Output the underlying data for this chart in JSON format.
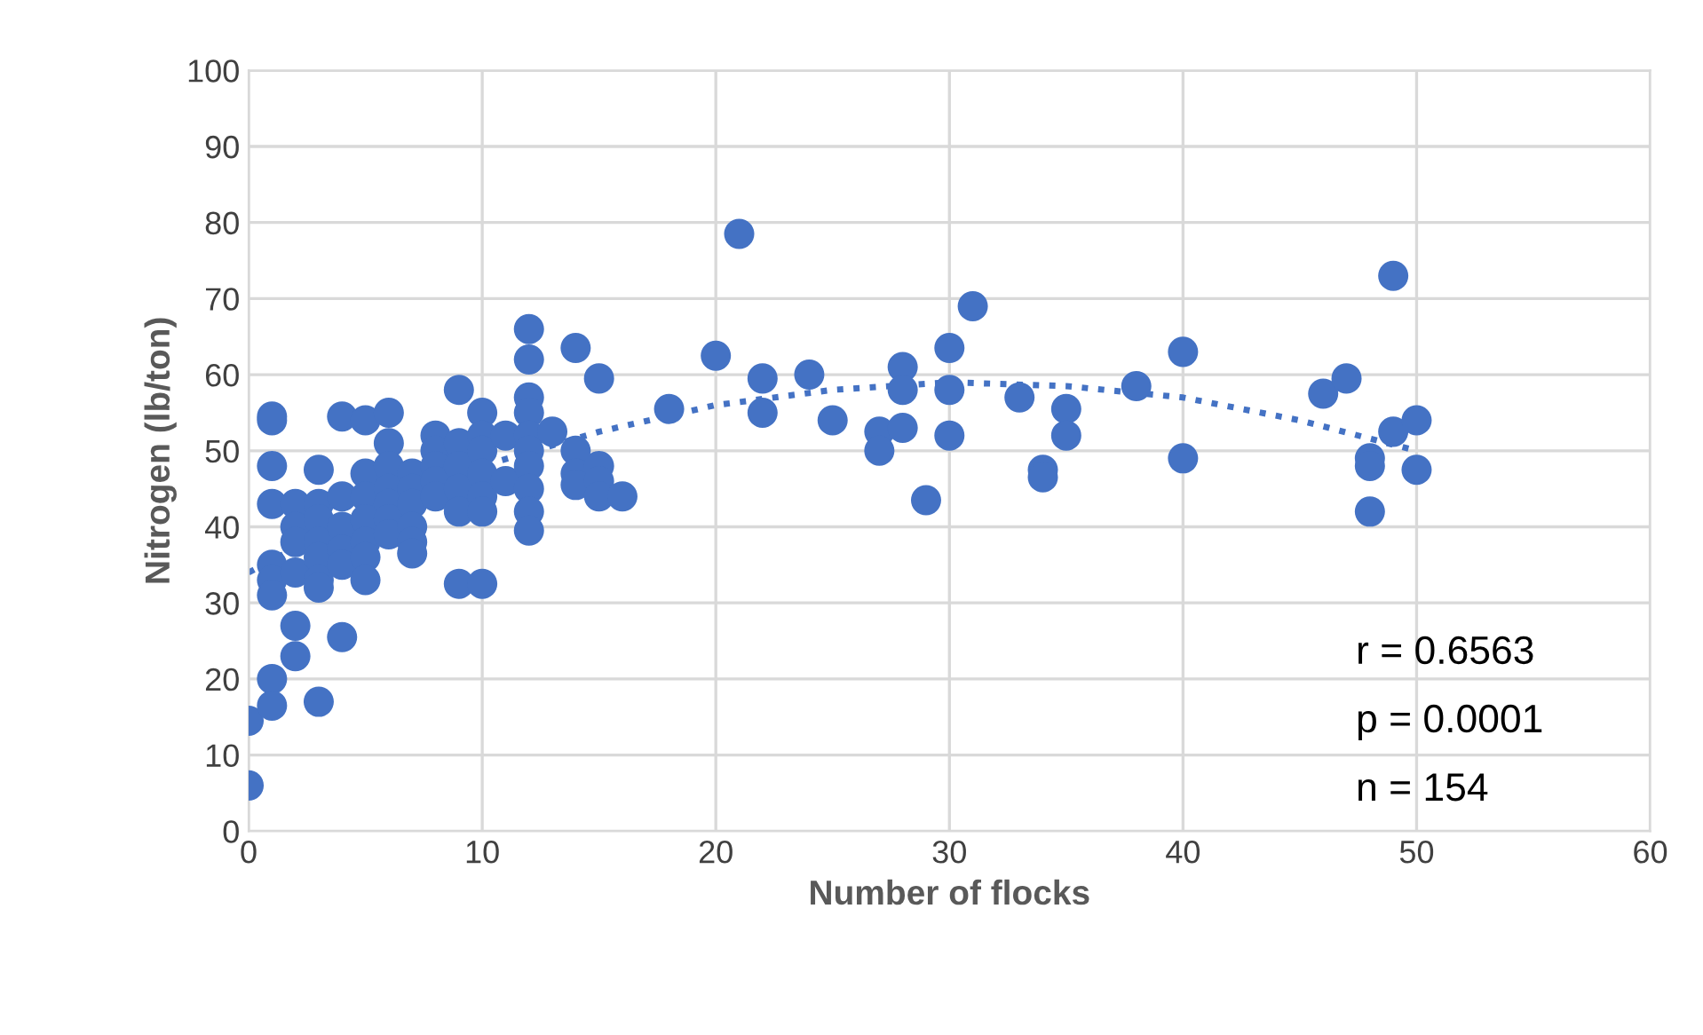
{
  "chart_data": {
    "type": "scatter",
    "xlabel": "Number of flocks",
    "ylabel": "Nitrogen (lb/ton)",
    "xlim": [
      0,
      60
    ],
    "ylim": [
      0,
      100
    ],
    "xticks": [
      0,
      10,
      20,
      30,
      40,
      50,
      60
    ],
    "yticks": [
      0,
      10,
      20,
      30,
      40,
      50,
      60,
      70,
      80,
      90,
      100
    ],
    "grid": true,
    "legend": false,
    "annotations": [
      "r = 0.6563",
      "p = 0.0001",
      "n = 154"
    ],
    "series": [
      {
        "color": "#4472c4",
        "marker": "circle",
        "x": [
          0,
          0,
          1,
          1,
          1,
          1,
          1,
          1,
          1,
          1,
          1,
          2,
          2,
          2,
          2,
          2,
          2,
          3,
          3,
          3,
          3,
          3,
          3,
          3,
          3,
          4,
          4,
          4,
          4,
          4,
          4,
          5,
          5,
          5,
          5,
          5,
          5,
          5,
          6,
          6,
          6,
          6,
          6,
          6,
          6,
          7,
          7,
          7,
          7,
          7,
          7,
          8,
          8,
          8,
          8,
          8,
          9,
          9,
          9,
          9,
          9,
          9,
          10,
          10,
          10,
          10,
          10,
          10,
          10,
          11,
          11,
          12,
          12,
          12,
          12,
          12,
          12,
          12,
          12,
          12,
          12,
          13,
          14,
          14,
          14,
          14,
          15,
          15,
          15,
          15,
          16,
          18,
          20,
          21,
          22,
          22,
          24,
          25,
          27,
          27,
          28,
          28,
          28,
          29,
          30,
          30,
          30,
          31,
          33,
          34,
          34,
          35,
          35,
          38,
          40,
          40,
          46,
          47,
          48,
          48,
          48,
          49,
          49,
          50,
          50
        ],
        "values": [
          6,
          14.5,
          54.5,
          54,
          48,
          43,
          35,
          33,
          31,
          20,
          16.5,
          43,
          40,
          38,
          34,
          27,
          23,
          47.5,
          43,
          41,
          38,
          36,
          33,
          32,
          17,
          54.5,
          44,
          40,
          37,
          35,
          25.5,
          54,
          47,
          44,
          41,
          38,
          36,
          33,
          55,
          51,
          48,
          45,
          43,
          41,
          39,
          47,
          45,
          43,
          40,
          38,
          36.5,
          52,
          50,
          48,
          46,
          44,
          58,
          51,
          48,
          45,
          42,
          32.5,
          55,
          52,
          50,
          47,
          44,
          42,
          32.5,
          52,
          46,
          66,
          62,
          57,
          55,
          52,
          50,
          48,
          45,
          42,
          39.5,
          52.5,
          63.5,
          50,
          47,
          45.5,
          59.5,
          48,
          46,
          44,
          44,
          55.5,
          62.5,
          78.5,
          59.5,
          55,
          60,
          54,
          52.5,
          50,
          61,
          58,
          53,
          43.5,
          63.5,
          58,
          52,
          69,
          57,
          47.5,
          46.5,
          55.5,
          52,
          58.5,
          63,
          49,
          57.5,
          59.5,
          49,
          48,
          42,
          73,
          52.5,
          54,
          47.5
        ]
      },
      {
        "type": "line",
        "color": "#4472c4",
        "line_style": "dotted",
        "marker": "none",
        "x": [
          0,
          5,
          10,
          15,
          20,
          25,
          30,
          35,
          40,
          45,
          50
        ],
        "values": [
          34,
          42,
          48,
          52.5,
          56,
          58,
          59,
          58.5,
          57,
          54,
          50
        ]
      }
    ]
  }
}
